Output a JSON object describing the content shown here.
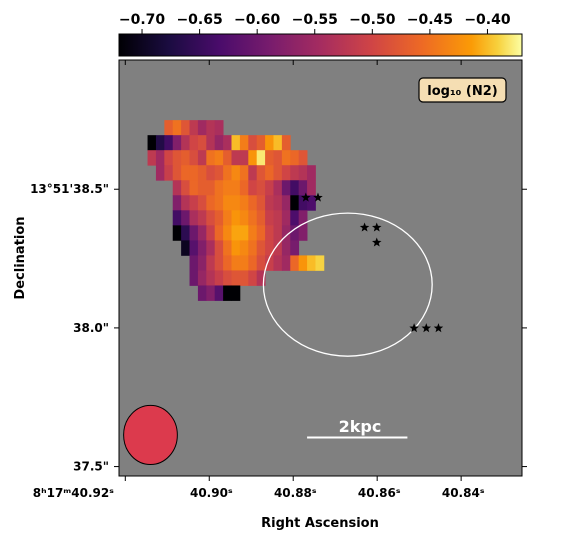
{
  "chart_data": {
    "type": "heatmap",
    "colorbar": {
      "colormap": "inferno",
      "range": [
        -0.72,
        -0.37
      ],
      "ticks": [
        -0.7,
        -0.65,
        -0.6,
        -0.55,
        -0.5,
        -0.45,
        -0.4
      ],
      "tick_labels": [
        "−0.70",
        "−0.65",
        "−0.60",
        "−0.55",
        "−0.50",
        "−0.45",
        "−0.40"
      ]
    },
    "xlabel": "Right Ascension",
    "ylabel": "Declination",
    "x_ticks": [
      {
        "v": 40.92,
        "label": "8ʰ17ᵐ40.92ˢ"
      },
      {
        "v": 40.9,
        "label": "40.90ˢ"
      },
      {
        "v": 40.88,
        "label": "40.88ˢ"
      },
      {
        "v": 40.86,
        "label": "40.86ˢ"
      },
      {
        "v": 40.84,
        "label": "40.84ˢ"
      }
    ],
    "y_ticks": [
      {
        "v": 38.5,
        "label": "13°51'38.5\""
      },
      {
        "v": 38.0,
        "label": "38.0\""
      },
      {
        "v": 37.5,
        "label": "37.5\""
      }
    ],
    "xlim": [
      40.9215,
      40.8255
    ],
    "ylim": [
      37.466,
      38.966
    ],
    "annotation_label": "log₁₀ (N2)",
    "scale_bar_label": "2kpc",
    "background_color": "#808080",
    "pixel_map": {
      "ra0": 40.9227,
      "dra": 0.002,
      "dec0": 38.966,
      "ddec": 0.0542,
      "rows": [
        [
          6,
          [
            -0.47,
            -0.45,
            -0.48,
            -0.52,
            -0.55,
            -0.53,
            -0.54
          ]
        ],
        [
          4,
          [
            -0.72,
            -0.67,
            -0.64,
            -0.58,
            -0.53,
            -0.5,
            -0.49,
            -0.53,
            -0.56,
            -0.54,
            -0.4,
            -0.44,
            -0.49,
            -0.47,
            -0.42,
            -0.4,
            -0.47
          ]
        ],
        [
          4,
          [
            -0.52,
            -0.55,
            -0.5,
            -0.48,
            -0.47,
            -0.49,
            -0.52,
            -0.45,
            -0.44,
            -0.47,
            -0.52,
            -0.52,
            -0.42,
            -0.38,
            -0.47,
            -0.48,
            -0.45,
            -0.46,
            -0.48
          ]
        ],
        [
          5,
          [
            -0.55,
            -0.51,
            -0.48,
            -0.46,
            -0.46,
            -0.47,
            -0.49,
            -0.48,
            -0.45,
            -0.43,
            -0.45,
            -0.52,
            -0.48,
            -0.46,
            -0.48,
            -0.5,
            -0.52,
            -0.53,
            -0.55
          ]
        ],
        [
          7,
          [
            -0.53,
            -0.49,
            -0.46,
            -0.47,
            -0.47,
            -0.45,
            -0.44,
            -0.44,
            -0.46,
            -0.5,
            -0.49,
            -0.51,
            -0.54,
            -0.6,
            -0.64,
            -0.6,
            -0.55
          ]
        ],
        [
          7,
          [
            -0.58,
            -0.53,
            -0.51,
            -0.49,
            -0.46,
            -0.45,
            -0.43,
            -0.43,
            -0.44,
            -0.46,
            -0.48,
            -0.52,
            -0.53,
            -0.56,
            -0.72,
            -0.64,
            -0.63
          ]
        ],
        [
          7,
          [
            -0.64,
            -0.6,
            -0.54,
            -0.52,
            -0.49,
            -0.47,
            -0.44,
            -0.42,
            -0.43,
            -0.45,
            -0.47,
            -0.51,
            -0.52,
            -0.55,
            -0.63,
            -0.58
          ]
        ],
        [
          7,
          [
            -0.72,
            -0.66,
            -0.6,
            -0.56,
            -0.51,
            -0.46,
            -0.43,
            -0.41,
            -0.41,
            -0.44,
            -0.46,
            -0.5,
            -0.52,
            -0.56,
            -0.6,
            -0.58
          ]
        ],
        [
          8,
          [
            -0.7,
            -0.62,
            -0.58,
            -0.54,
            -0.49,
            -0.45,
            -0.42,
            -0.43,
            -0.45,
            -0.48,
            -0.5,
            -0.52,
            -0.56,
            -0.59
          ]
        ],
        [
          9,
          [
            -0.6,
            -0.57,
            -0.52,
            -0.49,
            -0.46,
            -0.44,
            -0.44,
            -0.46,
            -0.49,
            -0.51,
            -0.53,
            -0.55,
            -0.46,
            -0.42,
            -0.4,
            -0.39
          ]
        ],
        [
          9,
          [
            -0.6,
            -0.56,
            -0.53,
            -0.51,
            -0.49,
            -0.48,
            -0.48,
            -0.5,
            -0.53
          ]
        ],
        [
          10,
          [
            -0.6,
            -0.58,
            -0.62,
            -0.72,
            -0.72
          ]
        ]
      ]
    },
    "star_markers": [
      {
        "ra": 40.877,
        "dec": 38.47
      },
      {
        "ra": 40.8741,
        "dec": 38.47
      },
      {
        "ra": 40.863,
        "dec": 38.362
      },
      {
        "ra": 40.8601,
        "dec": 38.362
      },
      {
        "ra": 40.8601,
        "dec": 38.308
      },
      {
        "ra": 40.8512,
        "dec": 37.999
      },
      {
        "ra": 40.8483,
        "dec": 37.999
      },
      {
        "ra": 40.8454,
        "dec": 37.999
      }
    ],
    "ellipse": {
      "ra_center": 40.867,
      "dec_center": 38.156,
      "ra_semi_axis": 0.0201,
      "dec_semi_axis": 0.258,
      "color": "#ffffff"
    },
    "beam": {
      "ra_center": 40.914,
      "dec_center": 37.614,
      "ra_radius": 0.0064,
      "dec_radius": 0.1066,
      "color": "#dc3a4d"
    },
    "scale_bar": {
      "ra_start": 40.8767,
      "ra_end": 40.8528,
      "dec": 37.605,
      "color": "#ffffff"
    },
    "grid": false
  }
}
